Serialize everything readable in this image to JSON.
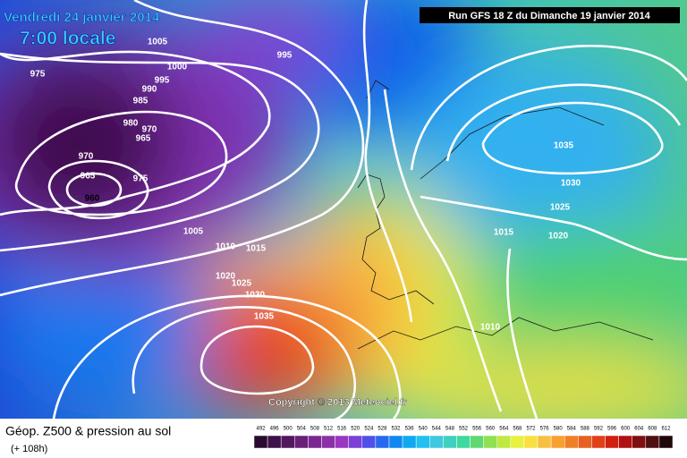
{
  "header": {
    "date": "Vendredi 24 janvier 2014",
    "time": "7:00 locale",
    "run": "Run GFS 18 Z du Dimanche 19 janvier 2014"
  },
  "map": {
    "isobar_labels": [
      1005,
      995,
      975,
      1000,
      995,
      990,
      985,
      980,
      970,
      965,
      970,
      965,
      960,
      975,
      1005,
      1010,
      1015,
      1020,
      1025,
      1030,
      1035,
      1035,
      1030,
      1025,
      1015,
      1020,
      1010
    ]
  },
  "copyright": "Copyright © 2013 Meteociel.fr",
  "footer": {
    "title": "Géop. Z500 & pression au sol",
    "lead": "(+ 108h)"
  },
  "legend": {
    "labels": [
      492,
      496,
      500,
      504,
      508,
      512,
      516,
      520,
      524,
      528,
      532,
      536,
      540,
      544,
      548,
      552,
      556,
      560,
      564,
      568,
      572,
      576,
      580,
      584,
      588,
      592,
      596,
      600,
      604,
      608,
      612
    ],
    "colors": [
      "#2a0a30",
      "#3c1048",
      "#521860",
      "#682078",
      "#7a2890",
      "#8c30a8",
      "#9a38c0",
      "#7a40d8",
      "#5050e8",
      "#2868f0",
      "#1088f0",
      "#10a8f0",
      "#20c0f0",
      "#40c8e0",
      "#40d0c0",
      "#40d8a0",
      "#60d870",
      "#90e050",
      "#c0e840",
      "#e8f040",
      "#f8e040",
      "#f8c040",
      "#f8a030",
      "#f08028",
      "#e86020",
      "#e04018",
      "#d02010",
      "#b01010",
      "#801010",
      "#501010",
      "#200808"
    ]
  }
}
